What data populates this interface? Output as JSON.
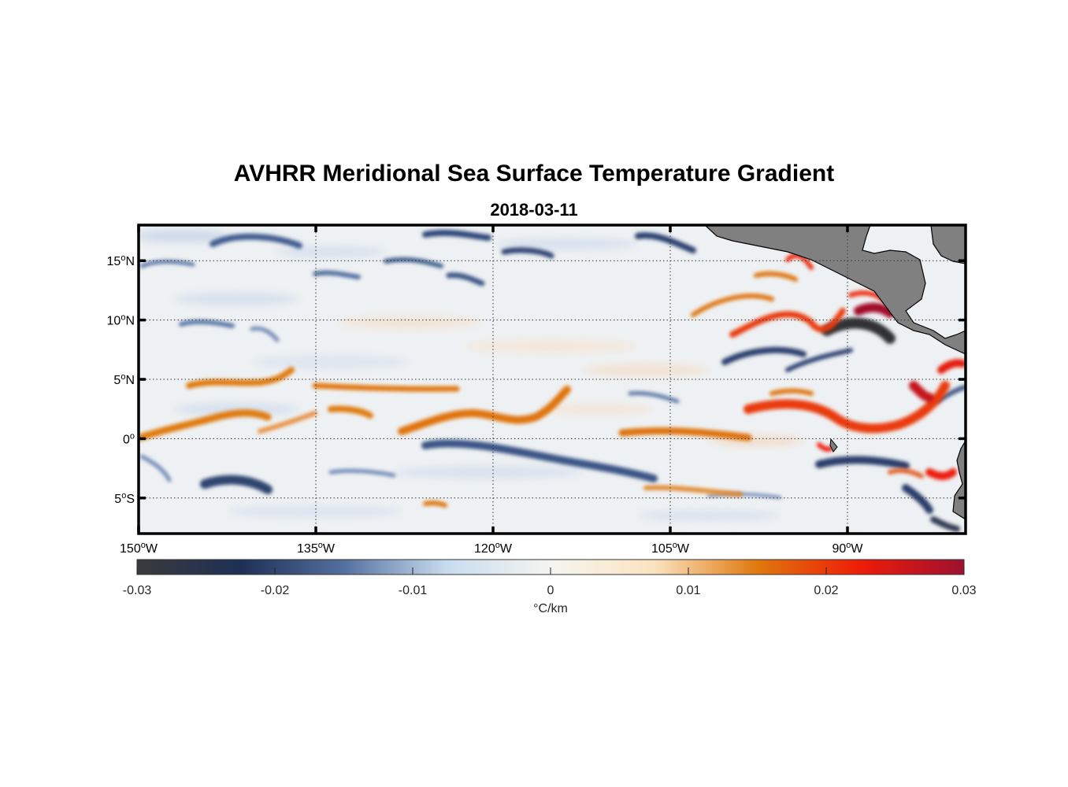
{
  "title": "AVHRR Meridional Sea Surface Temperature Gradient",
  "subtitle": "2018-03-11",
  "map": {
    "lon_range": [
      -150,
      -80
    ],
    "lat_range": [
      -8,
      18
    ],
    "lon_ticks": [
      {
        "value": -150,
        "deg": "150",
        "hemi": "W"
      },
      {
        "value": -135,
        "deg": "135",
        "hemi": "W"
      },
      {
        "value": -120,
        "deg": "120",
        "hemi": "W"
      },
      {
        "value": -105,
        "deg": "105",
        "hemi": "W"
      },
      {
        "value": -90,
        "deg": "90",
        "hemi": "W"
      }
    ],
    "lat_ticks": [
      {
        "value": 15,
        "deg": "15",
        "hemi": "N"
      },
      {
        "value": 10,
        "deg": "10",
        "hemi": "N"
      },
      {
        "value": 5,
        "deg": "5",
        "hemi": "N"
      },
      {
        "value": 0,
        "deg": "0",
        "hemi": ""
      },
      {
        "value": -5,
        "deg": "5",
        "hemi": "S"
      }
    ],
    "land_color": "#808080",
    "grid": "dotted"
  },
  "colorbar": {
    "min": -0.03,
    "max": 0.03,
    "tick_values": [
      -0.03,
      -0.02,
      -0.01,
      0,
      0.01,
      0.02,
      0.03
    ],
    "tick_labels": [
      "-0.03",
      "-0.02",
      "-0.01",
      "0",
      "0.01",
      "0.02",
      "0.03"
    ],
    "units": "°C/km",
    "colors": [
      "#3a3a3c",
      "#1e2f55",
      "#5470a0",
      "#c9dcef",
      "#f5f5f0",
      "#fbe3c0",
      "#e0780e",
      "#ee1c08",
      "#9e1030"
    ]
  }
}
